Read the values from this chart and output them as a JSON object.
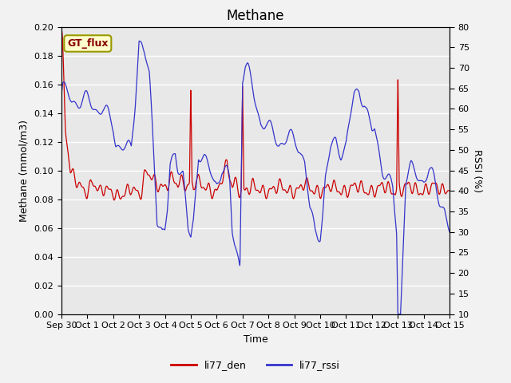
{
  "title": "Methane",
  "xlabel": "Time",
  "ylabel_left": "Methane (mmol/m3)",
  "ylabel_right": "RSSI (%)",
  "ylim_left": [
    0.0,
    0.2
  ],
  "ylim_right": [
    10,
    80
  ],
  "yticks_left": [
    0.0,
    0.02,
    0.04,
    0.06,
    0.08,
    0.1,
    0.12,
    0.14,
    0.16,
    0.18,
    0.2
  ],
  "yticks_right": [
    10,
    15,
    20,
    25,
    30,
    35,
    40,
    45,
    50,
    55,
    60,
    65,
    70,
    75,
    80
  ],
  "xtick_labels": [
    "Sep 30",
    "Oct 1",
    "Oct 2",
    "Oct 3",
    "Oct 4",
    "Oct 5",
    "Oct 6",
    "Oct 7",
    "Oct 8",
    "Oct 9",
    "Oct 10",
    "Oct 11",
    "Oct 12",
    "Oct 13",
    "Oct 14",
    "Oct 15"
  ],
  "color_red": "#cc0000",
  "color_blue": "#3333cc",
  "legend_labels": [
    "li77_den",
    "li77_rssi"
  ],
  "annotation_text": "GT_flux",
  "annotation_bg": "#ffffcc",
  "annotation_border": "#999900",
  "plot_bg": "#e8e8e8",
  "fig_bg": "#f2f2f2",
  "grid_color": "#ffffff",
  "title_fontsize": 12,
  "axis_label_fontsize": 9,
  "tick_fontsize": 8
}
